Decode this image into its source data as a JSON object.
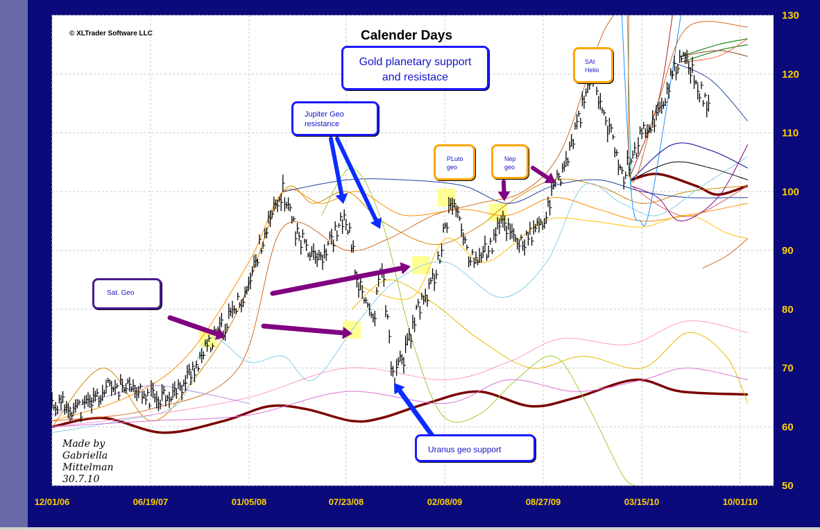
{
  "window": {
    "copyright": "© XLTrader Software LLC",
    "credit": "Made by\nGabriella\nMittelman\n30.7.10"
  },
  "chart_data": {
    "type": "line",
    "title": "Calender Days",
    "x_tick_labels": [
      "12/01/06",
      "06/19/07",
      "01/05/08",
      "07/23/08",
      "02/08/09",
      "08/27/09",
      "03/15/10",
      "10/01/10"
    ],
    "y_tick_labels": [
      "130",
      "120",
      "110",
      "100",
      "90",
      "80",
      "70",
      "60",
      "50"
    ],
    "ylim": [
      50,
      130
    ],
    "grid": true,
    "price_series": {
      "name": "Gold",
      "points": [
        [
          "12/01/06",
          64
        ],
        [
          "02/01/07",
          63
        ],
        [
          "04/01/07",
          67
        ],
        [
          "06/19/07",
          65
        ],
        [
          "08/15/07",
          66
        ],
        [
          "10/01/07",
          72
        ],
        [
          "12/01/07",
          79
        ],
        [
          "01/05/08",
          84
        ],
        [
          "02/01/08",
          92
        ],
        [
          "03/15/08",
          100
        ],
        [
          "04/15/08",
          92
        ],
        [
          "06/01/08",
          89
        ],
        [
          "07/15/08",
          95
        ],
        [
          "07/23/08",
          95
        ],
        [
          "08/15/08",
          84
        ],
        [
          "09/15/08",
          78
        ],
        [
          "10/01/08",
          88
        ],
        [
          "10/24/08",
          68
        ],
        [
          "11/15/08",
          72
        ],
        [
          "12/15/08",
          80
        ],
        [
          "01/15/09",
          85
        ],
        [
          "02/08/09",
          94
        ],
        [
          "02/20/09",
          99
        ],
        [
          "04/01/09",
          88
        ],
        [
          "05/15/09",
          91
        ],
        [
          "06/01/09",
          95
        ],
        [
          "07/15/09",
          91
        ],
        [
          "08/27/09",
          95
        ],
        [
          "09/15/09",
          100
        ],
        [
          "10/15/09",
          106
        ],
        [
          "12/02/09",
          120
        ],
        [
          "01/15/10",
          108
        ],
        [
          "02/05/10",
          103
        ],
        [
          "03/15/10",
          110
        ],
        [
          "04/15/10",
          113
        ],
        [
          "05/15/10",
          120
        ],
        [
          "06/15/10",
          123
        ],
        [
          "07/01/10",
          118
        ],
        [
          "07/28/10",
          115
        ]
      ]
    },
    "highlights": [
      {
        "x": "10/15/07",
        "y": 75
      },
      {
        "x": "08/01/08",
        "y": 76.5
      },
      {
        "x": "12/20/08",
        "y": 87.5
      },
      {
        "x": "02/10/09",
        "y": 99
      },
      {
        "x": "05/25/09",
        "y": 96.5
      }
    ],
    "curves": [
      {
        "color": "#7a0000",
        "width": 3.5,
        "points": [
          [
            "12/01/06",
            60
          ],
          [
            "03/15/07",
            61.5
          ],
          [
            "07/15/07",
            59
          ],
          [
            "11/15/07",
            61
          ],
          [
            "02/15/08",
            63.5
          ],
          [
            "05/01/08",
            63
          ],
          [
            "08/01/08",
            61
          ],
          [
            "10/01/08",
            61.5
          ],
          [
            "01/01/09",
            64
          ],
          [
            "04/15/09",
            66
          ],
          [
            "08/01/09",
            63.5
          ],
          [
            "11/01/09",
            65
          ],
          [
            "03/01/10",
            68
          ],
          [
            "06/01/10",
            66
          ],
          [
            "10/15/10",
            65.5
          ]
        ]
      },
      {
        "color": "#7a0000",
        "width": 3.5,
        "points": [
          [
            "02/20/10",
            102
          ],
          [
            "04/15/10",
            103
          ],
          [
            "07/01/10",
            101
          ],
          [
            "08/15/10",
            99.5
          ],
          [
            "10/15/10",
            101
          ]
        ]
      },
      {
        "color": "#cc8800",
        "width": 1,
        "points": [
          [
            "12/01/06",
            60
          ],
          [
            "03/15/07",
            70
          ],
          [
            "06/19/07",
            61
          ],
          [
            "09/15/07",
            68
          ],
          [
            "12/15/07",
            80
          ],
          [
            "03/15/08",
            100
          ],
          [
            "05/15/08",
            98
          ],
          [
            "07/23/08",
            100
          ],
          [
            "10/01/08",
            95
          ],
          [
            "01/15/09",
            91
          ],
          [
            "04/15/09",
            94
          ],
          [
            "06/15/09",
            98
          ],
          [
            "09/15/09",
            102
          ],
          [
            "12/15/09",
            101
          ],
          [
            "03/15/10",
            98
          ],
          [
            "06/15/10",
            100
          ],
          [
            "10/15/10",
            101
          ]
        ]
      },
      {
        "color": "#ff8c00",
        "width": 1,
        "points": [
          [
            "12/01/06",
            61
          ],
          [
            "05/01/07",
            65
          ],
          [
            "09/01/07",
            72
          ],
          [
            "01/05/08",
            88
          ],
          [
            "03/15/08",
            100
          ],
          [
            "06/01/08",
            98
          ],
          [
            "08/15/08",
            100
          ],
          [
            "11/15/08",
            96
          ],
          [
            "03/15/09",
            97
          ],
          [
            "06/15/09",
            96
          ],
          [
            "09/15/09",
            99
          ],
          [
            "12/15/09",
            97
          ],
          [
            "03/15/10",
            95
          ],
          [
            "06/15/10",
            96
          ],
          [
            "10/15/10",
            98
          ]
        ]
      },
      {
        "color": "#1e3ea0",
        "width": 1,
        "points": [
          [
            "03/15/08",
            100
          ],
          [
            "07/23/08",
            102
          ],
          [
            "11/15/08",
            102
          ],
          [
            "03/15/09",
            101
          ],
          [
            "06/15/09",
            98
          ],
          [
            "09/15/09",
            101
          ],
          [
            "12/15/09",
            102
          ],
          [
            "03/15/10",
            100
          ],
          [
            "06/15/10",
            99
          ],
          [
            "10/15/10",
            99
          ]
        ]
      },
      {
        "color": "#d2691e",
        "width": 1,
        "points": [
          [
            "12/01/06",
            61
          ],
          [
            "06/19/07",
            63
          ],
          [
            "12/15/07",
            70
          ],
          [
            "03/15/08",
            94
          ],
          [
            "07/23/08",
            90
          ],
          [
            "10/15/08",
            92
          ],
          [
            "01/15/09",
            96
          ],
          [
            "04/15/09",
            98
          ],
          [
            "07/15/09",
            100
          ],
          [
            "10/01/09",
            107
          ],
          [
            "12/15/09",
            125
          ],
          [
            "01/15/10",
            130
          ]
        ]
      },
      {
        "color": "#87ceeb",
        "width": 1,
        "points": [
          [
            "12/01/06",
            59
          ],
          [
            "04/15/07",
            61
          ],
          [
            "08/15/07",
            64
          ],
          [
            "10/15/07",
            75
          ],
          [
            "01/05/08",
            71
          ],
          [
            "03/15/08",
            72
          ],
          [
            "05/15/08",
            68
          ],
          [
            "08/15/08",
            78
          ],
          [
            "11/01/08",
            85
          ],
          [
            "02/08/09",
            88
          ],
          [
            "06/01/09",
            82
          ],
          [
            "09/01/09",
            88
          ],
          [
            "11/15/09",
            101
          ],
          [
            "02/01/10",
            98
          ],
          [
            "04/15/10",
            96
          ],
          [
            "07/15/10",
            101
          ],
          [
            "10/15/10",
            106
          ]
        ]
      },
      {
        "color": "#ffc000",
        "width": 1,
        "points": [
          [
            "08/15/08",
            84
          ],
          [
            "12/01/08",
            82
          ],
          [
            "02/08/09",
            92
          ],
          [
            "05/01/09",
            88
          ],
          [
            "08/27/09",
            95
          ],
          [
            "12/01/09",
            95
          ],
          [
            "03/15/10",
            94
          ],
          [
            "06/15/10",
            96
          ],
          [
            "09/01/10",
            93
          ],
          [
            "10/15/10",
            92
          ]
        ]
      },
      {
        "color": "#e6b800",
        "width": 1,
        "points": [
          [
            "08/01/08",
            80
          ],
          [
            "10/15/08",
            85
          ],
          [
            "01/15/09",
            81
          ],
          [
            "04/15/09",
            75
          ],
          [
            "08/01/09",
            70
          ],
          [
            "11/15/09",
            72
          ],
          [
            "03/15/10",
            70
          ],
          [
            "06/15/10",
            76
          ],
          [
            "09/01/10",
            72
          ],
          [
            "10/15/10",
            64
          ]
        ]
      },
      {
        "color": "#9acd32",
        "width": 1,
        "points": [
          [
            "06/01/08",
            96
          ],
          [
            "08/01/08",
            104
          ],
          [
            "10/01/08",
            95
          ],
          [
            "12/01/08",
            75
          ],
          [
            "02/01/09",
            62
          ],
          [
            "04/15/09",
            62
          ],
          [
            "07/01/09",
            68
          ],
          [
            "09/15/09",
            72
          ],
          [
            "11/15/09",
            65
          ],
          [
            "02/01/10",
            52
          ],
          [
            "03/01/10",
            50
          ]
        ]
      },
      {
        "color": "#ff99cc",
        "width": 1,
        "points": [
          [
            "12/01/06",
            60
          ],
          [
            "06/19/07",
            62
          ],
          [
            "01/05/08",
            65
          ],
          [
            "07/23/08",
            70
          ],
          [
            "02/08/09",
            68
          ],
          [
            "06/15/09",
            71
          ],
          [
            "10/01/09",
            75
          ],
          [
            "02/15/10",
            74
          ],
          [
            "06/15/10",
            78
          ],
          [
            "10/15/10",
            76
          ]
        ]
      },
      {
        "color": "#da70d6",
        "width": 1,
        "points": [
          [
            "12/01/06",
            60
          ],
          [
            "06/19/07",
            61
          ],
          [
            "01/05/08",
            62
          ],
          [
            "07/23/08",
            66
          ],
          [
            "02/08/09",
            64
          ],
          [
            "06/15/09",
            68
          ],
          [
            "11/01/09",
            66
          ],
          [
            "03/15/10",
            68
          ],
          [
            "06/15/10",
            70
          ],
          [
            "10/15/10",
            68
          ]
        ]
      },
      {
        "color": "#b08be0",
        "width": 1,
        "points": [
          [
            "12/01/06",
            62
          ],
          [
            "03/15/07",
            65
          ],
          [
            "06/19/07",
            67
          ],
          [
            "09/15/07",
            66
          ],
          [
            "01/05/08",
            64
          ]
        ]
      },
      {
        "color": "#1e90ff",
        "width": 1,
        "points": [
          [
            "02/01/10",
            130
          ],
          [
            "02/20/10",
            100
          ],
          [
            "03/10/10",
            95
          ],
          [
            "04/01/10",
            98
          ],
          [
            "06/01/10",
            130
          ]
        ]
      },
      {
        "color": "#20b2aa",
        "width": 1,
        "points": [
          [
            "02/12/10",
            130
          ],
          [
            "02/20/10",
            100
          ]
        ]
      },
      {
        "color": "#00008b",
        "width": 1,
        "points": [
          [
            "02/20/10",
            102
          ],
          [
            "05/15/10",
            108
          ],
          [
            "08/01/10",
            107
          ],
          [
            "10/15/10",
            104
          ]
        ]
      },
      {
        "color": "#000000",
        "width": 1,
        "points": [
          [
            "02/20/10",
            102
          ],
          [
            "05/15/10",
            105
          ],
          [
            "08/01/10",
            104
          ],
          [
            "10/15/10",
            102
          ]
        ]
      },
      {
        "color": "#2f4fa0",
        "width": 1,
        "points": [
          [
            "05/15/10",
            122
          ],
          [
            "08/01/10",
            119
          ],
          [
            "10/15/10",
            112
          ]
        ]
      },
      {
        "color": "#a52a2a",
        "width": 1,
        "points": [
          [
            "02/20/10",
            103
          ],
          [
            "04/15/10",
            115
          ],
          [
            "05/15/10",
            130
          ]
        ]
      },
      {
        "color": "#228b22",
        "width": 1.2,
        "points": [
          [
            "06/01/10",
            123
          ],
          [
            "08/15/10",
            125
          ],
          [
            "10/15/10",
            126
          ]
        ]
      },
      {
        "color": "#228b22",
        "width": 1.2,
        "points": [
          [
            "06/01/10",
            122
          ],
          [
            "08/15/10",
            124
          ],
          [
            "10/15/10",
            125
          ]
        ]
      },
      {
        "color": "#8b4513",
        "width": 1,
        "points": [
          [
            "06/01/10",
            123
          ],
          [
            "08/15/10",
            124
          ],
          [
            "10/15/10",
            123
          ]
        ]
      },
      {
        "color": "#ff6347",
        "width": 1,
        "points": [
          [
            "06/01/10",
            122
          ],
          [
            "08/15/10",
            123
          ],
          [
            "10/15/10",
            126
          ]
        ]
      },
      {
        "color": "#800080",
        "width": 1,
        "points": [
          [
            "02/20/10",
            101
          ],
          [
            "04/15/10",
            99
          ],
          [
            "06/01/10",
            95
          ],
          [
            "08/15/10",
            99
          ],
          [
            "10/15/10",
            108
          ]
        ]
      },
      {
        "color": "#cd5c5c",
        "width": 1,
        "points": [
          [
            "02/20/10",
            101
          ],
          [
            "05/01/10",
            97
          ],
          [
            "07/01/10",
            96
          ],
          [
            "10/15/10",
            101
          ]
        ]
      },
      {
        "color": "#d2691e",
        "width": 1,
        "points": [
          [
            "07/15/10",
            87
          ],
          [
            "09/01/10",
            89
          ],
          [
            "10/15/10",
            92
          ]
        ]
      },
      {
        "color": "#d2691e",
        "width": 1,
        "points": [
          [
            "02/15/10",
            130
          ],
          [
            "02/20/10",
            102
          ],
          [
            "04/15/10",
            115
          ],
          [
            "06/15/10",
            128
          ],
          [
            "10/15/10",
            128
          ]
        ]
      }
    ],
    "annotations": [
      {
        "id": "gold",
        "text": "Gold planetary support\nand resistace",
        "style": "blue"
      },
      {
        "id": "jupiter",
        "text": "Jupiter Geo\nresistance",
        "style": "blue"
      },
      {
        "id": "satgeo",
        "text": "Sat. Geo",
        "style": "purple"
      },
      {
        "id": "pluto",
        "text": "PLuto\ngeo",
        "style": "orange"
      },
      {
        "id": "nep",
        "text": "Nep\ngeo",
        "style": "orange"
      },
      {
        "id": "sathelio",
        "text": "SAt\nHelio",
        "style": "orange"
      },
      {
        "id": "uranus",
        "text": "Uranus geo support",
        "style": "blue"
      }
    ]
  }
}
